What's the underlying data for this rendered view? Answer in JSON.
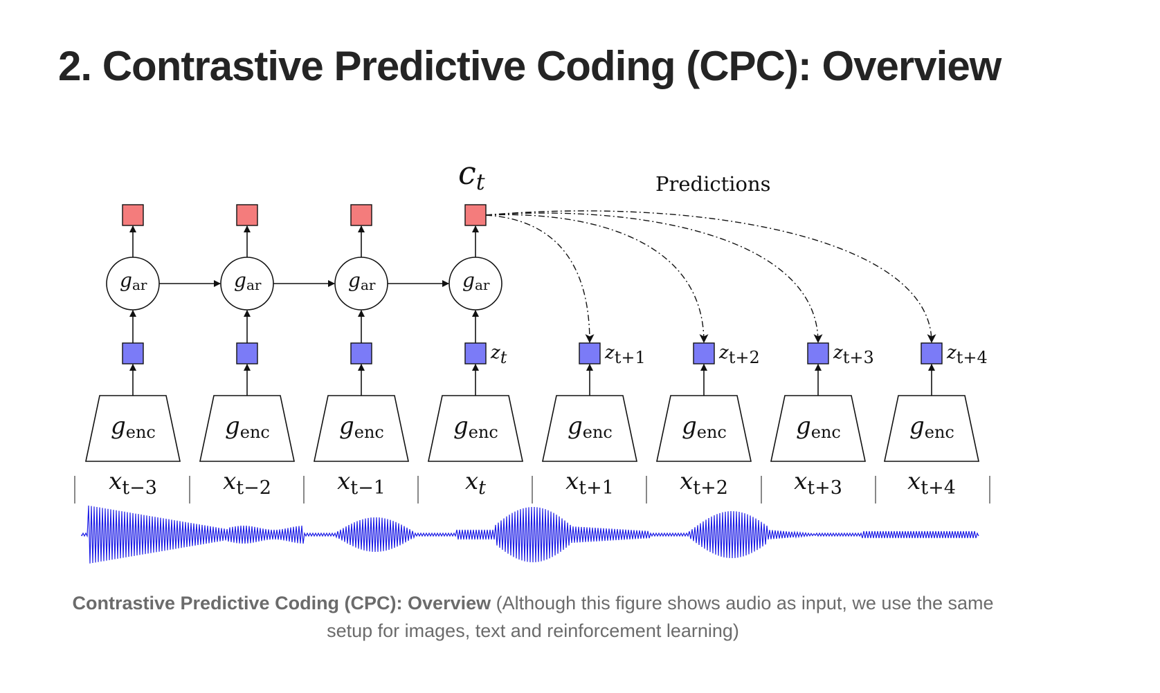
{
  "article": {
    "heading": "2. Contrastive Predictive Coding (CPC): Overview"
  },
  "diagram": {
    "context_label": "c",
    "context_subscript": "t",
    "predictions_label": "Predictions",
    "ar_base": "g",
    "ar_subscript": "ar",
    "enc_base": "g",
    "enc_subscript": "enc",
    "latent_base": "z",
    "input_base": "x",
    "subscripts": [
      "t−3",
      "t−2",
      "t−1",
      "t",
      "t+1",
      "t+2",
      "t+3",
      "t+4"
    ],
    "colors": {
      "context": "#f47c7c",
      "latent": "#7b7bf7",
      "waveform": "#1a1ae6",
      "stroke": "#111111"
    }
  },
  "caption": {
    "bold": "Contrastive Predictive Coding (CPC): Overview",
    "text": " (Although this figure shows audio as input, we use the same setup for images, text and reinforcement learning)"
  }
}
